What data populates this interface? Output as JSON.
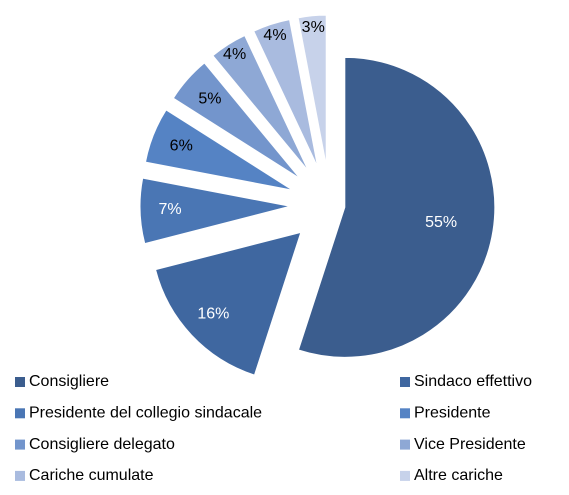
{
  "chart_data": {
    "type": "pie",
    "categories": [
      "Consigliere",
      "Sindaco effettivo",
      "Presidente del collegio sindacale",
      "Presidente",
      "Consigliere delegato",
      "Vice Presidente",
      "Cariche cumulate",
      "Altre cariche"
    ],
    "values": [
      55,
      16,
      7,
      6,
      5,
      4,
      4,
      3
    ],
    "value_labels": [
      "55%",
      "16%",
      "7%",
      "6%",
      "5%",
      "4%",
      "4%",
      "3%"
    ],
    "colors": [
      "#3b5d8e",
      "#3f67a0",
      "#4a76b4",
      "#5583c4",
      "#7395cc",
      "#8ea8d5",
      "#a9bbdf",
      "#c7d2ea"
    ],
    "label_colors": [
      "#ffffff",
      "#ffffff",
      "#ffffff",
      "#000000",
      "#000000",
      "#000000",
      "#000000",
      "#000000"
    ],
    "legend": "bottom"
  }
}
